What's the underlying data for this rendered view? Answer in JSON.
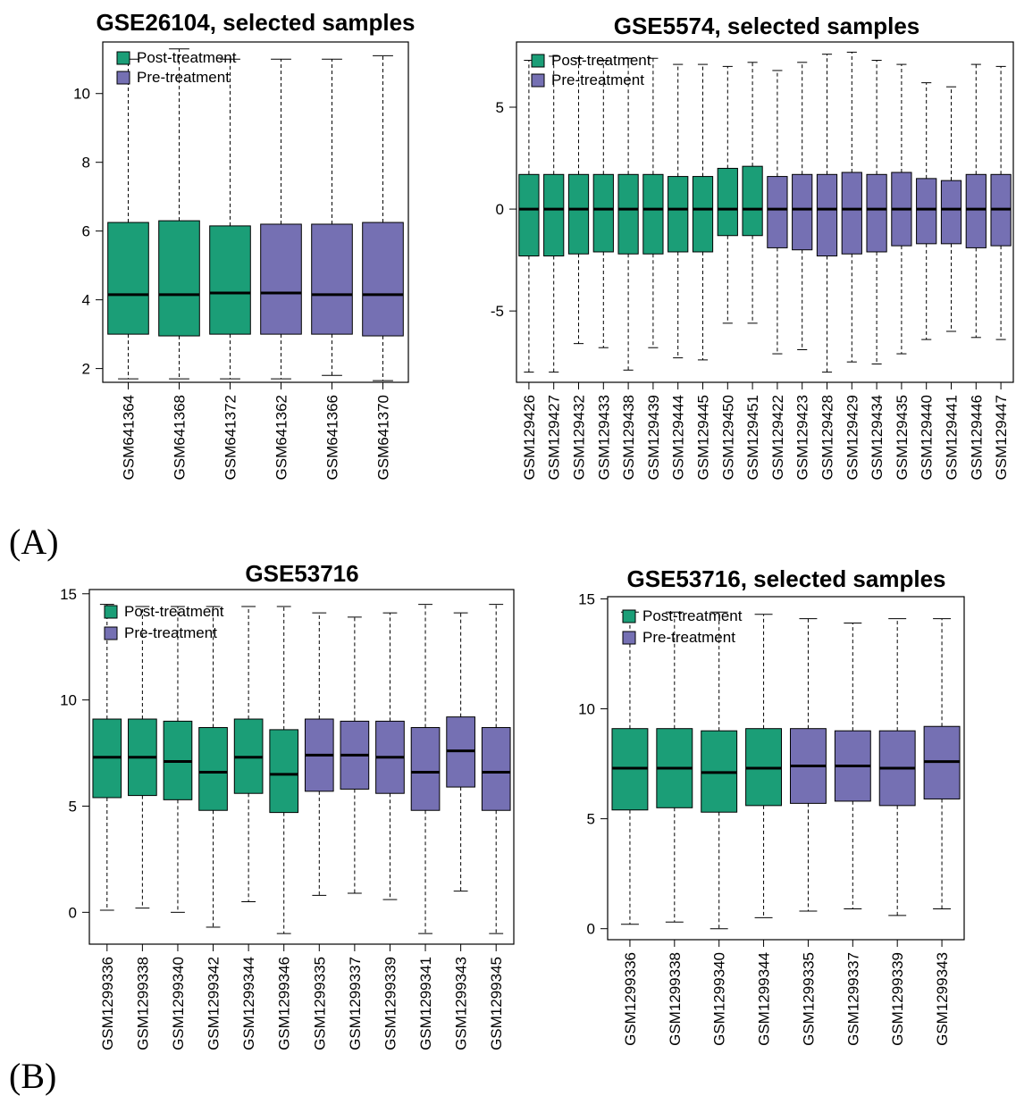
{
  "panel_labels": {
    "a": "(A)",
    "b": "(B)"
  },
  "colors": {
    "post": "#1b9e77",
    "pre": "#7570b3"
  },
  "chart_data": [
    {
      "type": "boxplot",
      "title": "GSE26104, selected samples",
      "legend": {
        "position": "top-left",
        "entries": [
          "Post-treatment",
          "Pre-treatment"
        ]
      },
      "ylim": [
        1.6,
        11.5
      ],
      "yticks": [
        2,
        4,
        6,
        8,
        10
      ],
      "categories": [
        "GSM641364",
        "GSM641368",
        "GSM641372",
        "GSM641362",
        "GSM641366",
        "GSM641370"
      ],
      "group": [
        "post",
        "post",
        "post",
        "pre",
        "pre",
        "pre"
      ],
      "min": [
        1.7,
        1.7,
        1.7,
        1.7,
        1.8,
        1.65
      ],
      "q1": [
        3.0,
        2.95,
        3.0,
        3.0,
        3.0,
        2.95
      ],
      "median": [
        4.15,
        4.15,
        4.2,
        4.2,
        4.15,
        4.15
      ],
      "q3": [
        6.25,
        6.3,
        6.15,
        6.2,
        6.2,
        6.25
      ],
      "max": [
        11.0,
        11.3,
        11.0,
        11.0,
        11.0,
        11.1
      ]
    },
    {
      "type": "boxplot",
      "title": "GSE5574, selected samples",
      "legend": {
        "position": "top-left",
        "entries": [
          "Post-treatment",
          "Pre-treatment"
        ]
      },
      "ylim": [
        -8.5,
        8.2
      ],
      "yticks": [
        -5,
        0,
        5
      ],
      "categories": [
        "GSM129426",
        "GSM129427",
        "GSM129432",
        "GSM129433",
        "GSM129438",
        "GSM129439",
        "GSM129444",
        "GSM129445",
        "GSM129450",
        "GSM129451",
        "GSM129422",
        "GSM129423",
        "GSM129428",
        "GSM129429",
        "GSM129434",
        "GSM129435",
        "GSM129440",
        "GSM129441",
        "GSM129446",
        "GSM129447"
      ],
      "group": [
        "post",
        "post",
        "post",
        "post",
        "post",
        "post",
        "post",
        "post",
        "post",
        "post",
        "pre",
        "pre",
        "pre",
        "pre",
        "pre",
        "pre",
        "pre",
        "pre",
        "pre",
        "pre"
      ],
      "min": [
        -8.0,
        -8.0,
        -6.6,
        -6.8,
        -7.9,
        -6.8,
        -7.3,
        -7.4,
        -5.6,
        -5.6,
        -7.1,
        -6.9,
        -8.0,
        -7.5,
        -7.6,
        -7.1,
        -6.4,
        -6.0,
        -6.3,
        -6.4
      ],
      "q1": [
        -2.3,
        -2.3,
        -2.2,
        -2.1,
        -2.2,
        -2.2,
        -2.1,
        -2.1,
        -1.3,
        -1.3,
        -1.9,
        -2.0,
        -2.3,
        -2.2,
        -2.1,
        -1.8,
        -1.7,
        -1.7,
        -1.9,
        -1.8
      ],
      "median": [
        0,
        0,
        0,
        0,
        0,
        0,
        0,
        0,
        0,
        0,
        0,
        0,
        0,
        0,
        0,
        0,
        0,
        0,
        0,
        0
      ],
      "q3": [
        1.7,
        1.7,
        1.7,
        1.7,
        1.7,
        1.7,
        1.6,
        1.6,
        2.0,
        2.1,
        1.6,
        1.7,
        1.7,
        1.8,
        1.7,
        1.8,
        1.5,
        1.4,
        1.7,
        1.7
      ],
      "max": [
        7.3,
        7.5,
        7.4,
        7.3,
        7.4,
        7.4,
        7.1,
        7.1,
        7.0,
        7.2,
        6.8,
        7.2,
        7.6,
        7.7,
        7.3,
        7.1,
        6.2,
        6.0,
        7.1,
        7.0
      ]
    },
    {
      "type": "boxplot",
      "title": "GSE53716",
      "legend": {
        "position": "top-left",
        "entries": [
          "Post-treatment",
          "Pre-treatment"
        ]
      },
      "ylim": [
        -1.5,
        15.2
      ],
      "yticks": [
        0,
        5,
        10,
        15
      ],
      "categories": [
        "GSM1299336",
        "GSM1299338",
        "GSM1299340",
        "GSM1299342",
        "GSM1299344",
        "GSM1299346",
        "GSM1299335",
        "GSM1299337",
        "GSM1299339",
        "GSM1299341",
        "GSM1299343",
        "GSM1299345"
      ],
      "group": [
        "post",
        "post",
        "post",
        "post",
        "post",
        "post",
        "pre",
        "pre",
        "pre",
        "pre",
        "pre",
        "pre"
      ],
      "min": [
        0.1,
        0.2,
        0.0,
        -0.7,
        0.5,
        -1.0,
        0.8,
        0.9,
        0.6,
        -1.0,
        1.0,
        -1.0
      ],
      "q1": [
        5.4,
        5.5,
        5.3,
        4.8,
        5.6,
        4.7,
        5.7,
        5.8,
        5.6,
        4.8,
        5.9,
        4.8
      ],
      "median": [
        7.3,
        7.3,
        7.1,
        6.6,
        7.3,
        6.5,
        7.4,
        7.4,
        7.3,
        6.6,
        7.6,
        6.6
      ],
      "q3": [
        9.1,
        9.1,
        9.0,
        8.7,
        9.1,
        8.6,
        9.1,
        9.0,
        9.0,
        8.7,
        9.2,
        8.7
      ],
      "max": [
        14.5,
        14.4,
        14.4,
        14.4,
        14.4,
        14.4,
        14.1,
        13.9,
        14.1,
        14.5,
        14.1,
        14.5
      ]
    },
    {
      "type": "boxplot",
      "title": "GSE53716, selected samples",
      "legend": {
        "position": "top-left",
        "entries": [
          "Post-treatment",
          "Pre-treatment"
        ]
      },
      "ylim": [
        -0.5,
        15.1
      ],
      "yticks": [
        0,
        5,
        10,
        15
      ],
      "categories": [
        "GSM1299336",
        "GSM1299338",
        "GSM1299340",
        "GSM1299344",
        "GSM1299335",
        "GSM1299337",
        "GSM1299339",
        "GSM1299343"
      ],
      "group": [
        "post",
        "post",
        "post",
        "post",
        "pre",
        "pre",
        "pre",
        "pre"
      ],
      "min": [
        0.2,
        0.3,
        0.0,
        0.5,
        0.8,
        0.9,
        0.6,
        0.9
      ],
      "q1": [
        5.4,
        5.5,
        5.3,
        5.6,
        5.7,
        5.8,
        5.6,
        5.9
      ],
      "median": [
        7.3,
        7.3,
        7.1,
        7.3,
        7.4,
        7.4,
        7.3,
        7.6
      ],
      "q3": [
        9.1,
        9.1,
        9.0,
        9.1,
        9.1,
        9.0,
        9.0,
        9.2
      ],
      "max": [
        14.4,
        14.4,
        14.4,
        14.3,
        14.1,
        13.9,
        14.1,
        14.1
      ]
    }
  ]
}
